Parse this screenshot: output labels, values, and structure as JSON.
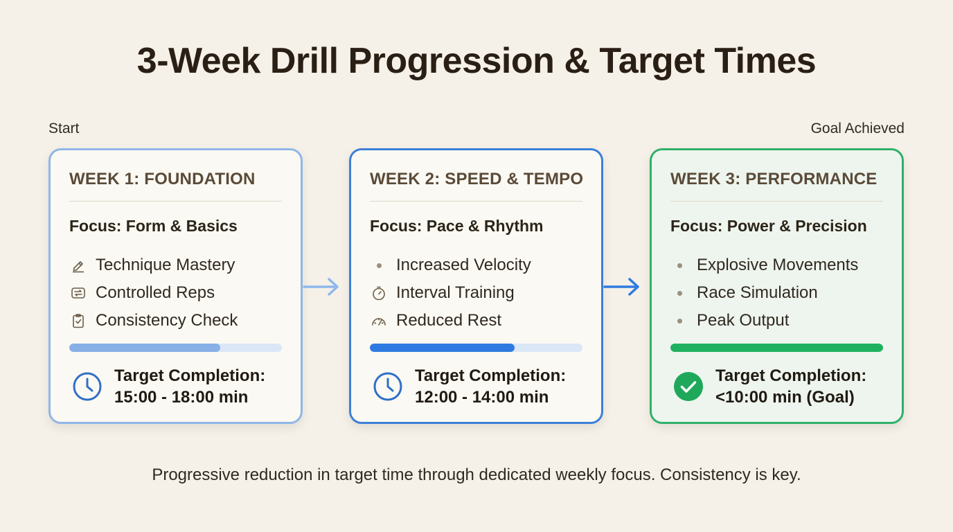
{
  "title": "3-Week Drill Progression & Target Times",
  "start_label": "Start",
  "goal_label": "Goal Achieved",
  "colors": {
    "week1_accent": "#90b6e8",
    "week2_accent": "#3b7fd9",
    "week3_accent": "#2fb06a"
  },
  "weeks": [
    {
      "title": "WEEK 1: FOUNDATION",
      "focus": "Focus: Form & Basics",
      "items": [
        {
          "label": "Technique Mastery",
          "icon": "pencil-icon"
        },
        {
          "label": "Controlled Reps",
          "icon": "repeat-icon"
        },
        {
          "label": "Consistency Check",
          "icon": "clipboard-check-icon"
        }
      ],
      "progress": 0.71,
      "target_label": "Target Completion:",
      "target_value": "15:00 - 18:00 min",
      "target_icon": "clock-icon"
    },
    {
      "title": "WEEK 2: SPEED & TEMPO",
      "focus": "Focus: Pace & Rhythm",
      "items": [
        {
          "label": "Increased Velocity",
          "icon": "bullet-dot"
        },
        {
          "label": "Interval Training",
          "icon": "stopwatch-icon"
        },
        {
          "label": "Reduced Rest",
          "icon": "speedometer-icon"
        }
      ],
      "progress": 0.68,
      "target_label": "Target Completion:",
      "target_value": "12:00 - 14:00 min",
      "target_icon": "clock-icon"
    },
    {
      "title": "WEEK 3: PERFORMANCE",
      "focus": "Focus: Power & Precision",
      "items": [
        {
          "label": "Explosive Movements",
          "icon": "bullet-dot"
        },
        {
          "label": "Race Simulation",
          "icon": "bullet-dot"
        },
        {
          "label": "Peak Output",
          "icon": "bullet-dot"
        }
      ],
      "progress": 1.0,
      "target_label": "Target Completion:",
      "target_value": "<10:00 min (Goal)",
      "target_icon": "check-circle-icon"
    }
  ],
  "footer": "Progressive reduction in target time through dedicated weekly focus. Consistency is key."
}
